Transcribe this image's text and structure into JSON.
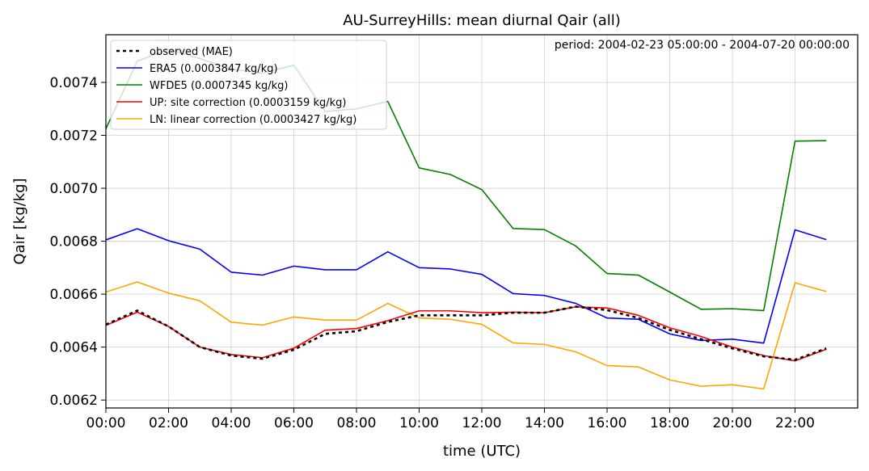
{
  "chart_data": {
    "type": "line",
    "title": "AU-SurreyHills: mean diurnal Qair (all)",
    "annotation": "period: 2004-02-23 05:00:00 - 2004-07-20 00:00:00",
    "xlabel": "time (UTC)",
    "ylabel": "Qair [kg/kg]",
    "x_hours": [
      0,
      1,
      2,
      3,
      4,
      5,
      6,
      7,
      8,
      9,
      10,
      11,
      12,
      13,
      14,
      15,
      16,
      17,
      18,
      19,
      20,
      21,
      22,
      23
    ],
    "xlim": [
      0,
      24
    ],
    "ylim": [
      0.00617,
      0.00758
    ],
    "x_ticks": [
      0,
      2,
      4,
      6,
      8,
      10,
      12,
      14,
      16,
      18,
      20,
      22
    ],
    "x_tick_labels": [
      "00:00",
      "02:00",
      "04:00",
      "06:00",
      "08:00",
      "10:00",
      "12:00",
      "14:00",
      "16:00",
      "18:00",
      "20:00",
      "22:00"
    ],
    "y_ticks": [
      0.0062,
      0.0064,
      0.0066,
      0.0068,
      0.007,
      0.0072,
      0.0074
    ],
    "y_tick_labels": [
      "0.0062",
      "0.0064",
      "0.0066",
      "0.0068",
      "0.0070",
      "0.0072",
      "0.0074"
    ],
    "grid": true,
    "legend_position": "top-left",
    "series": [
      {
        "name": "observed (MAE)",
        "color": "#000000",
        "dashed": true,
        "values": [
          0.006485,
          0.006538,
          0.006478,
          0.0064,
          0.006368,
          0.006356,
          0.00639,
          0.00645,
          0.00646,
          0.006495,
          0.00652,
          0.00652,
          0.00652,
          0.00653,
          0.00653,
          0.006553,
          0.00654,
          0.00651,
          0.006465,
          0.00643,
          0.006395,
          0.006365,
          0.006352,
          0.006395
        ]
      },
      {
        "name": "ERA5 (0.0003847 kg/kg)",
        "color": "#0000ff",
        "values": [
          0.006805,
          0.006847,
          0.006802,
          0.00677,
          0.006683,
          0.006672,
          0.006706,
          0.006692,
          0.006692,
          0.00676,
          0.0067,
          0.006695,
          0.006675,
          0.006602,
          0.006595,
          0.006565,
          0.00651,
          0.006505,
          0.00645,
          0.006425,
          0.00643,
          0.006415,
          0.006843,
          0.006806
        ]
      },
      {
        "name": "WFDE5 (0.0007345 kg/kg)",
        "color": "#008000",
        "values": [
          0.007225,
          0.00748,
          0.007525,
          0.00749,
          0.00745,
          0.007435,
          0.007465,
          0.00729,
          0.0073,
          0.007328,
          0.007077,
          0.007052,
          0.006995,
          0.006848,
          0.006844,
          0.006782,
          0.006678,
          0.006672,
          0.006608,
          0.006543,
          0.006545,
          0.006538,
          0.007178,
          0.00718
        ]
      },
      {
        "name": "UP: site correction (0.0003159 kg/kg)",
        "color": "#ff0000",
        "values": [
          0.006482,
          0.006532,
          0.006478,
          0.0064,
          0.006372,
          0.00636,
          0.006396,
          0.006464,
          0.00647,
          0.0065,
          0.006537,
          0.006537,
          0.00653,
          0.006532,
          0.00653,
          0.006552,
          0.006548,
          0.00652,
          0.006473,
          0.00644,
          0.0064,
          0.006368,
          0.006348,
          0.006392
        ]
      },
      {
        "name": "LN: linear correction (0.0003427 kg/kg)",
        "color": "#ffa500",
        "values": [
          0.006608,
          0.006646,
          0.006604,
          0.006575,
          0.006494,
          0.006483,
          0.006514,
          0.006502,
          0.006502,
          0.006565,
          0.00651,
          0.006505,
          0.006486,
          0.006416,
          0.00641,
          0.006382,
          0.00633,
          0.006325,
          0.006276,
          0.006252,
          0.006258,
          0.006242,
          0.006643,
          0.00661
        ]
      }
    ]
  }
}
